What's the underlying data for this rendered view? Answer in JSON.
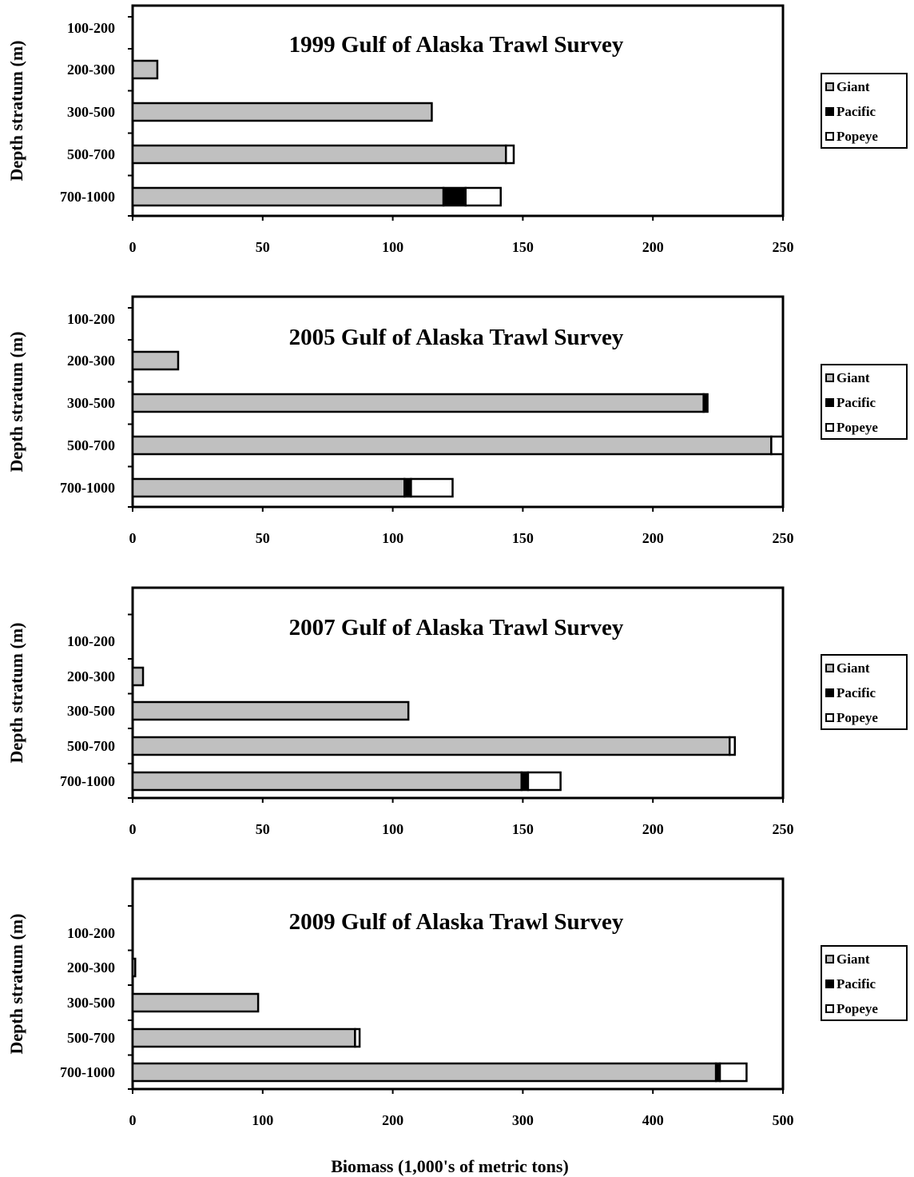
{
  "figure": {
    "xlabel": "Biomass (1,000's of metric tons)"
  },
  "chart_data": [
    {
      "type": "bar",
      "orientation": "horizontal",
      "stacked": true,
      "title": "1999 Gulf of Alaska Trawl Survey",
      "ylabel": "Depth stratum (m)",
      "xlabel": "Biomass (1,000's of metric tons)",
      "categories": [
        "100-200",
        "200-300",
        "300-500",
        "500-700",
        "700-1000"
      ],
      "xlim": [
        0,
        250
      ],
      "xticks": [
        0,
        50,
        100,
        150,
        200,
        250
      ],
      "series": [
        {
          "name": "Giant",
          "color": "#c0c0c0",
          "values": [
            0,
            9.5,
            115,
            143.5,
            119.5
          ]
        },
        {
          "name": "Pacific",
          "color": "#000000",
          "values": [
            0,
            0,
            0,
            0,
            8.5
          ]
        },
        {
          "name": "Popeye",
          "color": "#ffffff",
          "values": [
            0,
            0,
            0,
            3,
            13.5
          ]
        }
      ],
      "legend": "right"
    },
    {
      "type": "bar",
      "orientation": "horizontal",
      "stacked": true,
      "title": "2005 Gulf of Alaska Trawl Survey",
      "ylabel": "Depth stratum (m)",
      "xlabel": "Biomass (1,000's of metric tons)",
      "categories": [
        "100-200",
        "200-300",
        "300-500",
        "500-700",
        "700-1000"
      ],
      "xlim": [
        0,
        250
      ],
      "xticks": [
        0,
        50,
        100,
        150,
        200,
        250
      ],
      "series": [
        {
          "name": "Giant",
          "color": "#c0c0c0",
          "values": [
            0,
            17.5,
            219.5,
            245.5,
            104.5
          ]
        },
        {
          "name": "Pacific",
          "color": "#000000",
          "values": [
            0,
            0,
            1.5,
            0,
            2.5
          ]
        },
        {
          "name": "Popeye",
          "color": "#ffffff",
          "values": [
            0,
            0,
            0,
            4.5,
            16
          ]
        }
      ],
      "legend": "right"
    },
    {
      "type": "bar",
      "orientation": "horizontal",
      "stacked": true,
      "title": "2007 Gulf of Alaska Trawl Survey",
      "ylabel": "Depth stratum (m)",
      "xlabel": "Biomass (1,000's of metric tons)",
      "categories": [
        "100-200",
        "200-300",
        "300-500",
        "500-700",
        "700-1000"
      ],
      "xlim": [
        0,
        250
      ],
      "xticks": [
        0,
        50,
        100,
        150,
        200,
        250
      ],
      "series": [
        {
          "name": "Giant",
          "color": "#c0c0c0",
          "values": [
            0,
            4,
            106,
            229.5,
            149.5
          ]
        },
        {
          "name": "Pacific",
          "color": "#000000",
          "values": [
            0,
            0,
            0,
            0,
            2.5
          ]
        },
        {
          "name": "Popeye",
          "color": "#ffffff",
          "values": [
            0,
            0,
            0,
            2,
            12.5
          ]
        }
      ],
      "legend": "right"
    },
    {
      "type": "bar",
      "orientation": "horizontal",
      "stacked": true,
      "title": "2009 Gulf of Alaska Trawl Survey",
      "ylabel": "Depth stratum (m)",
      "xlabel": "Biomass (1,000's of metric tons)",
      "categories": [
        "100-200",
        "200-300",
        "300-500",
        "500-700",
        "700-1000"
      ],
      "xlim": [
        0,
        500
      ],
      "xticks": [
        0,
        100,
        200,
        300,
        400,
        500
      ],
      "series": [
        {
          "name": "Giant",
          "color": "#c0c0c0",
          "values": [
            0,
            2,
            96.5,
            171,
            448.5
          ]
        },
        {
          "name": "Pacific",
          "color": "#000000",
          "values": [
            0,
            0,
            0,
            0,
            3
          ]
        },
        {
          "name": "Popeye",
          "color": "#ffffff",
          "values": [
            0,
            0,
            0,
            3.5,
            20.5
          ]
        }
      ],
      "legend": "right"
    }
  ]
}
